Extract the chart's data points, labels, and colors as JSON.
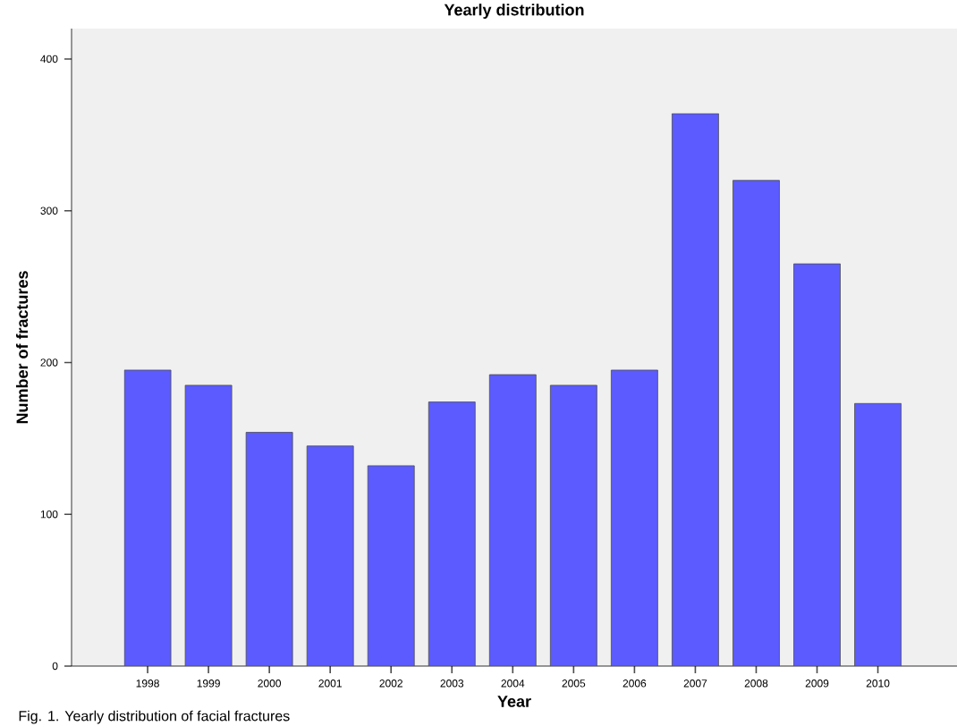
{
  "chart_data": {
    "type": "bar",
    "title": "Yearly distribution",
    "xlabel": "Year",
    "ylabel": "Number of fractures",
    "categories": [
      "1998",
      "1999",
      "2000",
      "2001",
      "2002",
      "2003",
      "2004",
      "2005",
      "2006",
      "2007",
      "2008",
      "2009",
      "2010"
    ],
    "values": [
      195,
      185,
      154,
      145,
      132,
      174,
      192,
      185,
      195,
      364,
      320,
      265,
      173
    ],
    "color": "#5b5bff",
    "ylim": [
      0,
      420
    ],
    "yticks": [
      0,
      100,
      200,
      300,
      400
    ],
    "annotations": [
      "Fig. 1. Yearly distribution of facial fractures"
    ]
  }
}
